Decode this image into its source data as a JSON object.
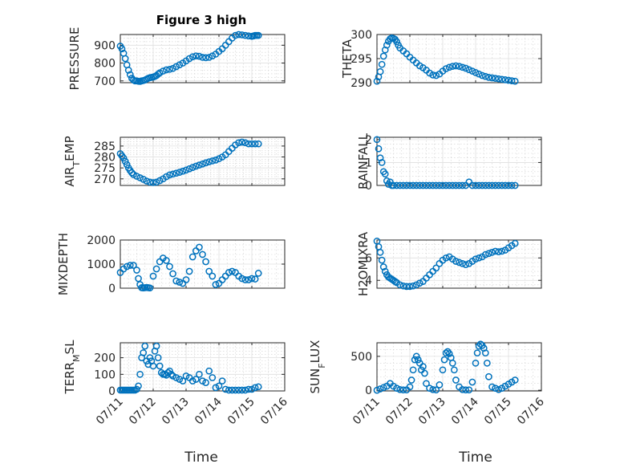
{
  "figure": {
    "title": "Figure 3 high",
    "xlabel": "Time",
    "marker_color": "#0072BD"
  },
  "chart_data": [
    {
      "type": "scatter",
      "id": "pressure",
      "title": "Figure 3 high",
      "ylabel": "PRESSURE",
      "ylim": [
        690,
        960
      ],
      "yticks": [
        700,
        800,
        900
      ],
      "xlim": [
        0,
        5
      ],
      "xticks": [],
      "grid": "on",
      "x": [
        0,
        0.05,
        0.1,
        0.15,
        0.2,
        0.25,
        0.3,
        0.35,
        0.4,
        0.45,
        0.5,
        0.55,
        0.6,
        0.65,
        0.7,
        0.75,
        0.8,
        0.85,
        0.9,
        0.95,
        1.0,
        1.05,
        1.1,
        1.15,
        1.2,
        1.3,
        1.4,
        1.5,
        1.6,
        1.7,
        1.8,
        1.9,
        2.0,
        2.1,
        2.2,
        2.3,
        2.4,
        2.5,
        2.6,
        2.7,
        2.8,
        2.9,
        3.0,
        3.1,
        3.2,
        3.3,
        3.4,
        3.5,
        3.6,
        3.7,
        3.8,
        3.9,
        4.0,
        4.05,
        4.1,
        4.15,
        4.2
      ],
      "y": [
        895,
        880,
        855,
        825,
        790,
        760,
        735,
        715,
        705,
        700,
        700,
        698,
        697,
        700,
        702,
        705,
        710,
        715,
        718,
        720,
        722,
        725,
        730,
        738,
        745,
        755,
        762,
        765,
        770,
        780,
        790,
        800,
        812,
        825,
        835,
        840,
        838,
        832,
        830,
        832,
        840,
        850,
        865,
        880,
        900,
        920,
        940,
        955,
        960,
        958,
        955,
        952,
        950,
        952,
        955,
        955,
        955
      ]
    },
    {
      "type": "scatter",
      "id": "theta",
      "ylabel": "THETA",
      "ylim": [
        290,
        300
      ],
      "yticks": [
        290,
        295,
        300
      ],
      "xlim": [
        0,
        5
      ],
      "xticks": [],
      "grid": "on",
      "x": [
        0,
        0.05,
        0.1,
        0.15,
        0.2,
        0.25,
        0.3,
        0.35,
        0.4,
        0.45,
        0.5,
        0.55,
        0.6,
        0.65,
        0.7,
        0.8,
        0.9,
        1.0,
        1.1,
        1.2,
        1.3,
        1.4,
        1.5,
        1.6,
        1.7,
        1.8,
        1.9,
        2.0,
        2.1,
        2.2,
        2.3,
        2.4,
        2.5,
        2.6,
        2.7,
        2.8,
        2.9,
        3.0,
        3.1,
        3.2,
        3.3,
        3.4,
        3.5,
        3.6,
        3.7,
        3.8,
        3.9,
        4.0,
        4.1,
        4.2
      ],
      "y": [
        290.3,
        291.2,
        292.3,
        293.8,
        295.5,
        296.8,
        297.8,
        298.6,
        299.1,
        299.3,
        299.2,
        299.0,
        298.5,
        297.8,
        297.2,
        296.6,
        296.0,
        295.3,
        294.7,
        294.1,
        293.5,
        293.1,
        292.6,
        292.0,
        291.6,
        291.5,
        291.8,
        292.4,
        292.9,
        293.2,
        293.4,
        293.5,
        293.4,
        293.2,
        293.0,
        292.7,
        292.4,
        292.1,
        291.8,
        291.5,
        291.3,
        291.1,
        291.0,
        290.9,
        290.8,
        290.7,
        290.6,
        290.5,
        290.4,
        290.3
      ]
    },
    {
      "type": "scatter",
      "id": "air_temp",
      "ylabel": "AIR_TEMP",
      "ylim": [
        267,
        289
      ],
      "yticks": [
        270,
        275,
        280,
        285
      ],
      "xlim": [
        0,
        5
      ],
      "xticks": [],
      "grid": "on",
      "x": [
        0,
        0.05,
        0.1,
        0.15,
        0.2,
        0.25,
        0.3,
        0.35,
        0.4,
        0.5,
        0.6,
        0.7,
        0.8,
        0.9,
        1.0,
        1.1,
        1.2,
        1.3,
        1.4,
        1.5,
        1.6,
        1.7,
        1.8,
        1.9,
        2.0,
        2.1,
        2.2,
        2.3,
        2.4,
        2.5,
        2.6,
        2.7,
        2.8,
        2.9,
        3.0,
        3.1,
        3.2,
        3.3,
        3.4,
        3.5,
        3.6,
        3.7,
        3.8,
        3.9,
        4.0,
        4.1,
        4.2
      ],
      "y": [
        281.5,
        280.5,
        279.5,
        278.0,
        276.5,
        275.0,
        273.8,
        272.8,
        272.0,
        271.2,
        270.5,
        269.8,
        269.0,
        268.5,
        268.3,
        268.5,
        269.2,
        270.0,
        271.0,
        271.8,
        272.2,
        272.6,
        273.0,
        273.5,
        274.0,
        274.6,
        275.2,
        275.8,
        276.3,
        276.8,
        277.3,
        277.8,
        278.2,
        278.6,
        279.2,
        280.0,
        281.0,
        282.5,
        284.0,
        285.5,
        286.5,
        286.8,
        286.5,
        286.0,
        286.0,
        286.0,
        286.0
      ]
    },
    {
      "type": "scatter",
      "id": "rainfall",
      "ylabel": "RAINFALL",
      "ylim": [
        0,
        2.1
      ],
      "yticks": [
        0,
        1,
        2
      ],
      "xlim": [
        0,
        5
      ],
      "xticks": [],
      "grid": "on",
      "x": [
        0,
        0.05,
        0.1,
        0.15,
        0.2,
        0.25,
        0.3,
        0.35,
        0.4,
        0.45,
        0.5,
        0.6,
        0.7,
        0.8,
        0.9,
        1.0,
        1.1,
        1.2,
        1.3,
        1.4,
        1.5,
        1.6,
        1.7,
        1.8,
        1.9,
        2.0,
        2.1,
        2.2,
        2.3,
        2.4,
        2.5,
        2.6,
        2.7,
        2.8,
        2.9,
        3.0,
        3.1,
        3.2,
        3.3,
        3.4,
        3.5,
        3.6,
        3.7,
        3.8,
        3.9,
        4.0,
        4.1,
        4.2
      ],
      "y": [
        2.0,
        1.6,
        1.2,
        1.0,
        0.6,
        0.5,
        0.2,
        0.05,
        0.15,
        0.0,
        0.0,
        0.0,
        0.0,
        0.0,
        0.0,
        0.0,
        0.0,
        0.0,
        0.0,
        0.0,
        0.0,
        0.0,
        0.0,
        0.0,
        0.0,
        0.0,
        0.0,
        0.0,
        0.0,
        0.0,
        0.0,
        0.0,
        0.0,
        0.15,
        0.0,
        0.0,
        0.0,
        0.0,
        0.0,
        0.0,
        0.0,
        0.0,
        0.0,
        0.0,
        0.0,
        0.0,
        0.0,
        0.0
      ]
    },
    {
      "type": "scatter",
      "id": "mixdepth",
      "ylabel": "MIXDEPTH",
      "ylim": [
        0,
        2000
      ],
      "yticks": [
        0,
        1000,
        2000
      ],
      "xlim": [
        0,
        5
      ],
      "xticks": [],
      "grid": "on",
      "x": [
        0,
        0.1,
        0.2,
        0.3,
        0.4,
        0.5,
        0.55,
        0.6,
        0.65,
        0.7,
        0.75,
        0.8,
        0.85,
        0.9,
        1.0,
        1.1,
        1.2,
        1.3,
        1.4,
        1.5,
        1.6,
        1.7,
        1.8,
        1.9,
        2.0,
        2.1,
        2.2,
        2.3,
        2.4,
        2.5,
        2.6,
        2.7,
        2.8,
        2.9,
        3.0,
        3.1,
        3.2,
        3.3,
        3.4,
        3.5,
        3.6,
        3.7,
        3.8,
        3.9,
        4.0,
        4.1,
        4.2
      ],
      "y": [
        650,
        800,
        900,
        950,
        950,
        750,
        400,
        150,
        20,
        10,
        20,
        30,
        20,
        10,
        500,
        800,
        1100,
        1250,
        1150,
        900,
        600,
        300,
        250,
        200,
        350,
        700,
        1300,
        1550,
        1700,
        1400,
        1100,
        700,
        500,
        150,
        200,
        350,
        500,
        650,
        700,
        650,
        500,
        400,
        350,
        350,
        400,
        380,
        620
      ]
    },
    {
      "type": "scatter",
      "id": "h2omixra",
      "ylabel": "H2OMIXRA",
      "ylim": [
        3.3,
        7.6
      ],
      "yticks": [
        4,
        6
      ],
      "xlim": [
        0,
        5
      ],
      "xticks": [],
      "grid": "on",
      "x": [
        0,
        0.05,
        0.1,
        0.15,
        0.2,
        0.25,
        0.3,
        0.35,
        0.4,
        0.45,
        0.5,
        0.55,
        0.6,
        0.7,
        0.8,
        0.9,
        1.0,
        1.1,
        1.2,
        1.3,
        1.4,
        1.5,
        1.6,
        1.7,
        1.8,
        1.9,
        2.0,
        2.1,
        2.2,
        2.3,
        2.4,
        2.5,
        2.6,
        2.7,
        2.8,
        2.9,
        3.0,
        3.1,
        3.2,
        3.3,
        3.4,
        3.5,
        3.6,
        3.7,
        3.8,
        3.9,
        4.0,
        4.1,
        4.2
      ],
      "y": [
        7.5,
        7.0,
        6.5,
        5.8,
        5.2,
        4.8,
        4.5,
        4.3,
        4.2,
        4.1,
        4.0,
        3.9,
        3.8,
        3.6,
        3.5,
        3.45,
        3.45,
        3.5,
        3.6,
        3.75,
        3.9,
        4.2,
        4.5,
        4.8,
        5.1,
        5.5,
        5.8,
        6.0,
        6.1,
        5.9,
        5.7,
        5.6,
        5.5,
        5.4,
        5.5,
        5.7,
        5.9,
        6.0,
        6.1,
        6.3,
        6.4,
        6.5,
        6.6,
        6.55,
        6.6,
        6.7,
        6.9,
        7.1,
        7.3
      ]
    },
    {
      "type": "scatter",
      "id": "terr_msl",
      "ylabel": "TERR_MSL",
      "ylim": [
        0,
        290
      ],
      "yticks": [
        0,
        100,
        200
      ],
      "xlim": [
        0,
        5
      ],
      "xticks": [
        "07/11",
        "07/12",
        "07/13",
        "07/14",
        "07/15",
        "07/16"
      ],
      "xlabel": "Time",
      "grid": "on",
      "x": [
        0,
        0.05,
        0.1,
        0.15,
        0.2,
        0.25,
        0.3,
        0.35,
        0.4,
        0.45,
        0.5,
        0.55,
        0.6,
        0.65,
        0.7,
        0.75,
        0.8,
        0.85,
        0.9,
        0.95,
        1.0,
        1.05,
        1.1,
        1.15,
        1.2,
        1.25,
        1.3,
        1.35,
        1.4,
        1.45,
        1.5,
        1.55,
        1.6,
        1.7,
        1.8,
        1.9,
        2.0,
        2.1,
        2.2,
        2.3,
        2.4,
        2.5,
        2.6,
        2.7,
        2.8,
        2.9,
        3.0,
        3.1,
        3.2,
        3.3,
        3.4,
        3.5,
        3.6,
        3.7,
        3.8,
        3.9,
        4.0,
        4.1,
        4.2
      ],
      "y": [
        5,
        5,
        5,
        5,
        5,
        5,
        5,
        5,
        5,
        5,
        10,
        30,
        100,
        200,
        230,
        270,
        180,
        160,
        200,
        180,
        150,
        240,
        270,
        200,
        150,
        110,
        100,
        100,
        95,
        110,
        120,
        100,
        90,
        80,
        70,
        60,
        90,
        80,
        60,
        70,
        100,
        60,
        50,
        120,
        80,
        20,
        30,
        60,
        10,
        5,
        5,
        5,
        5,
        5,
        5,
        10,
        10,
        20,
        25
      ]
    },
    {
      "type": "scatter",
      "id": "sun_flux",
      "ylabel": "SUN_FLUX",
      "ylim": [
        -10,
        700
      ],
      "yticks": [
        0,
        500
      ],
      "xlim": [
        0,
        5
      ],
      "xticks": [
        "07/11",
        "07/12",
        "07/13",
        "07/14",
        "07/15",
        "07/16"
      ],
      "xlabel": "Time",
      "grid": "on",
      "x": [
        0,
        0.1,
        0.2,
        0.3,
        0.4,
        0.5,
        0.6,
        0.7,
        0.8,
        0.9,
        1.0,
        1.05,
        1.1,
        1.15,
        1.2,
        1.25,
        1.3,
        1.35,
        1.4,
        1.45,
        1.5,
        1.6,
        1.7,
        1.8,
        1.9,
        2.0,
        2.05,
        2.1,
        2.15,
        2.2,
        2.25,
        2.3,
        2.35,
        2.4,
        2.5,
        2.6,
        2.7,
        2.8,
        2.9,
        3.0,
        3.05,
        3.1,
        3.15,
        3.2,
        3.25,
        3.3,
        3.35,
        3.4,
        3.5,
        3.6,
        3.7,
        3.8,
        3.9,
        4.0,
        4.1,
        4.2
      ],
      "y": [
        0,
        20,
        40,
        60,
        100,
        60,
        30,
        10,
        5,
        5,
        50,
        150,
        300,
        450,
        500,
        450,
        400,
        300,
        350,
        250,
        100,
        30,
        10,
        5,
        80,
        300,
        450,
        550,
        570,
        540,
        480,
        400,
        300,
        150,
        50,
        10,
        5,
        5,
        120,
        400,
        550,
        650,
        680,
        660,
        620,
        550,
        400,
        200,
        50,
        30,
        10,
        30,
        60,
        90,
        120,
        150
      ]
    }
  ]
}
